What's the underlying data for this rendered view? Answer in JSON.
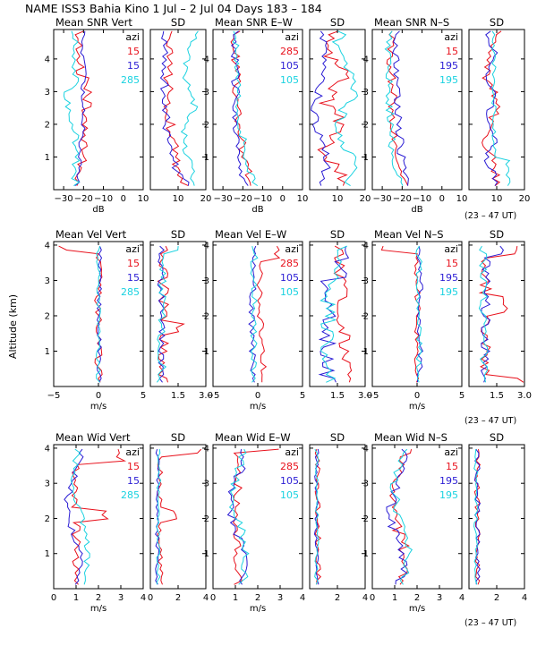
{
  "title": "NAME ISS3 Bahia Kino    1 Jul –  2 Jul 04 Days 183 – 184",
  "y_axis_label": "Altitude (km)",
  "time_note": "(23 – 47 UT)",
  "colors": {
    "red": "#e8111c",
    "blue": "#2a1cd4",
    "cyan": "#1ad2e0",
    "axis": "#000000"
  },
  "chart_data": [
    {
      "id": "snr_vert",
      "type": "line",
      "title": "Mean SNR Vert",
      "xlabel": "dB",
      "xlim": [
        -35,
        10
      ],
      "xticks": [
        -30,
        -20,
        -10,
        0,
        10
      ],
      "xtick_labels": [
        "−30",
        "−20",
        "−10",
        "0",
        "10"
      ],
      "ylim": [
        0,
        4.9
      ],
      "yticks": [
        1,
        2,
        3,
        4
      ],
      "legend": {
        "title": "azi",
        "entries": [
          {
            "name": "15",
            "color": "red"
          },
          {
            "name": "15",
            "color": "blue"
          },
          {
            "name": "285",
            "color": "cyan"
          }
        ]
      }
    },
    {
      "id": "snr_vert_sd",
      "type": "line",
      "title": "SD",
      "xlabel": "",
      "xlim": [
        0,
        20
      ],
      "xticks": [
        10,
        20
      ],
      "xtick_labels": [
        "10",
        "20"
      ],
      "ylim": [
        0,
        4.9
      ],
      "yticks": [
        1,
        2,
        3,
        4
      ]
    },
    {
      "id": "snr_ew",
      "type": "line",
      "title": "Mean SNR E–W",
      "xlabel": "dB",
      "xlim": [
        -35,
        10
      ],
      "xticks": [
        -30,
        -20,
        -10,
        0,
        10
      ],
      "xtick_labels": [
        "−30",
        "−20",
        "−10",
        "0",
        "10"
      ],
      "ylim": [
        0,
        4.9
      ],
      "yticks": [
        1,
        2,
        3,
        4
      ],
      "legend": {
        "title": "azi",
        "entries": [
          {
            "name": "285",
            "color": "red"
          },
          {
            "name": "105",
            "color": "blue"
          },
          {
            "name": "105",
            "color": "cyan"
          }
        ]
      }
    },
    {
      "id": "snr_ew_sd",
      "type": "line",
      "title": "SD",
      "xlabel": "",
      "xlim": [
        0,
        20
      ],
      "xticks": [
        10,
        20
      ],
      "xtick_labels": [
        "10",
        "20"
      ],
      "ylim": [
        0,
        4.9
      ],
      "yticks": [
        1,
        2,
        3,
        4
      ]
    },
    {
      "id": "snr_ns",
      "type": "line",
      "title": "Mean SNR N–S",
      "xlabel": "dB",
      "xlim": [
        -35,
        10
      ],
      "xticks": [
        -30,
        -20,
        -10,
        0,
        10
      ],
      "xtick_labels": [
        "−30",
        "−20",
        "−10",
        "0",
        "10"
      ],
      "ylim": [
        0,
        4.9
      ],
      "yticks": [
        1,
        2,
        3,
        4
      ],
      "legend": {
        "title": "azi",
        "entries": [
          {
            "name": "15",
            "color": "red"
          },
          {
            "name": "195",
            "color": "blue"
          },
          {
            "name": "195",
            "color": "cyan"
          }
        ]
      }
    },
    {
      "id": "snr_ns_sd",
      "type": "line",
      "title": "SD",
      "xlabel": "",
      "xlim": [
        0,
        20
      ],
      "xticks": [
        10,
        20
      ],
      "xtick_labels": [
        "10",
        "20"
      ],
      "ylim": [
        0,
        4.9
      ],
      "yticks": [
        1,
        2,
        3,
        4
      ]
    },
    {
      "id": "vel_vert",
      "type": "line",
      "title": "Mean Vel Vert",
      "xlabel": "m/s",
      "xlim": [
        -5,
        5
      ],
      "xticks": [
        -5,
        0,
        5
      ],
      "xtick_labels": [
        "−5",
        "0",
        "5"
      ],
      "ylim": [
        0,
        4.1
      ],
      "yticks": [
        1,
        2,
        3,
        4
      ],
      "legend": {
        "title": "azi",
        "entries": [
          {
            "name": "15",
            "color": "red"
          },
          {
            "name": "15",
            "color": "blue"
          },
          {
            "name": "285",
            "color": "cyan"
          }
        ]
      }
    },
    {
      "id": "vel_vert_sd",
      "type": "line",
      "title": "SD",
      "xlabel": "",
      "xlim": [
        0,
        3
      ],
      "xticks": [
        1.5,
        3
      ],
      "xtick_labels": [
        "1.5",
        "3.0"
      ],
      "ylim": [
        0,
        4.1
      ],
      "yticks": [
        1,
        2,
        3,
        4
      ]
    },
    {
      "id": "vel_ew",
      "type": "line",
      "title": "Mean Vel E–W",
      "xlabel": "m/s",
      "xlim": [
        -5,
        5
      ],
      "xticks": [
        -5,
        0,
        5
      ],
      "xtick_labels": [
        "−5",
        "0",
        "5"
      ],
      "ylim": [
        0,
        4.1
      ],
      "yticks": [
        1,
        2,
        3,
        4
      ],
      "legend": {
        "title": "azi",
        "entries": [
          {
            "name": "285",
            "color": "red"
          },
          {
            "name": "105",
            "color": "blue"
          },
          {
            "name": "105",
            "color": "cyan"
          }
        ]
      }
    },
    {
      "id": "vel_ew_sd",
      "type": "line",
      "title": "SD",
      "xlabel": "",
      "xlim": [
        0,
        3
      ],
      "xticks": [
        1.5,
        3
      ],
      "xtick_labels": [
        "1.5",
        "3.0"
      ],
      "ylim": [
        0,
        4.1
      ],
      "yticks": [
        1,
        2,
        3,
        4
      ]
    },
    {
      "id": "vel_ns",
      "type": "line",
      "title": "Mean Vel N–S",
      "xlabel": "m/s",
      "xlim": [
        -5,
        5
      ],
      "xticks": [
        -5,
        0,
        5
      ],
      "xtick_labels": [
        "−5",
        "0",
        "5"
      ],
      "ylim": [
        0,
        4.1
      ],
      "yticks": [
        1,
        2,
        3,
        4
      ],
      "legend": {
        "title": "azi",
        "entries": [
          {
            "name": "15",
            "color": "red"
          },
          {
            "name": "195",
            "color": "blue"
          },
          {
            "name": "195",
            "color": "cyan"
          }
        ]
      }
    },
    {
      "id": "vel_ns_sd",
      "type": "line",
      "title": "SD",
      "xlabel": "",
      "xlim": [
        0,
        3
      ],
      "xticks": [
        1.5,
        3
      ],
      "xtick_labels": [
        "1.5",
        "3.0"
      ],
      "ylim": [
        0,
        4.1
      ],
      "yticks": [
        1,
        2,
        3,
        4
      ]
    },
    {
      "id": "wid_vert",
      "type": "line",
      "title": "Mean Wid Vert",
      "xlabel": "m/s",
      "xlim": [
        0,
        4
      ],
      "xticks": [
        0,
        1,
        2,
        3,
        4
      ],
      "xtick_labels": [
        "0",
        "1",
        "2",
        "3",
        "4"
      ],
      "ylim": [
        0,
        4.1
      ],
      "yticks": [
        1,
        2,
        3,
        4
      ],
      "legend": {
        "title": "azi",
        "entries": [
          {
            "name": "15",
            "color": "red"
          },
          {
            "name": "15",
            "color": "blue"
          },
          {
            "name": "285",
            "color": "cyan"
          }
        ]
      }
    },
    {
      "id": "wid_vert_sd",
      "type": "line",
      "title": "SD",
      "xlabel": "",
      "xlim": [
        0,
        4
      ],
      "xticks": [
        0,
        2,
        4
      ],
      "xtick_labels": [
        "0",
        "2",
        "4"
      ],
      "ylim": [
        0,
        4.1
      ],
      "yticks": [
        1,
        2,
        3,
        4
      ]
    },
    {
      "id": "wid_ew",
      "type": "line",
      "title": "Mean Wid E–W",
      "xlabel": "m/s",
      "xlim": [
        0,
        4
      ],
      "xticks": [
        0,
        1,
        2,
        3,
        4
      ],
      "xtick_labels": [
        "0",
        "1",
        "2",
        "3",
        "4"
      ],
      "ylim": [
        0,
        4.1
      ],
      "yticks": [
        1,
        2,
        3,
        4
      ],
      "legend": {
        "title": "azi",
        "entries": [
          {
            "name": "285",
            "color": "red"
          },
          {
            "name": "105",
            "color": "blue"
          },
          {
            "name": "105",
            "color": "cyan"
          }
        ]
      }
    },
    {
      "id": "wid_ew_sd",
      "type": "line",
      "title": "SD",
      "xlabel": "",
      "xlim": [
        0,
        4
      ],
      "xticks": [
        2,
        4
      ],
      "xtick_labels": [
        "2",
        "4"
      ],
      "ylim": [
        0,
        4.1
      ],
      "yticks": [
        1,
        2,
        3,
        4
      ]
    },
    {
      "id": "wid_ns",
      "type": "line",
      "title": "Mean Wid N–S",
      "xlabel": "m/s",
      "xlim": [
        0,
        4
      ],
      "xticks": [
        0,
        1,
        2,
        3,
        4
      ],
      "xtick_labels": [
        "0",
        "1",
        "2",
        "3",
        "4"
      ],
      "ylim": [
        0,
        4.1
      ],
      "yticks": [
        1,
        2,
        3,
        4
      ],
      "legend": {
        "title": "azi",
        "entries": [
          {
            "name": "15",
            "color": "red"
          },
          {
            "name": "195",
            "color": "blue"
          },
          {
            "name": "195",
            "color": "cyan"
          }
        ]
      }
    },
    {
      "id": "wid_ns_sd",
      "type": "line",
      "title": "SD",
      "xlabel": "",
      "xlim": [
        0,
        4
      ],
      "xticks": [
        2,
        4
      ],
      "xtick_labels": [
        "2",
        "4"
      ],
      "ylim": [
        0,
        4.1
      ],
      "yticks": [
        1,
        2,
        3,
        4
      ]
    }
  ]
}
